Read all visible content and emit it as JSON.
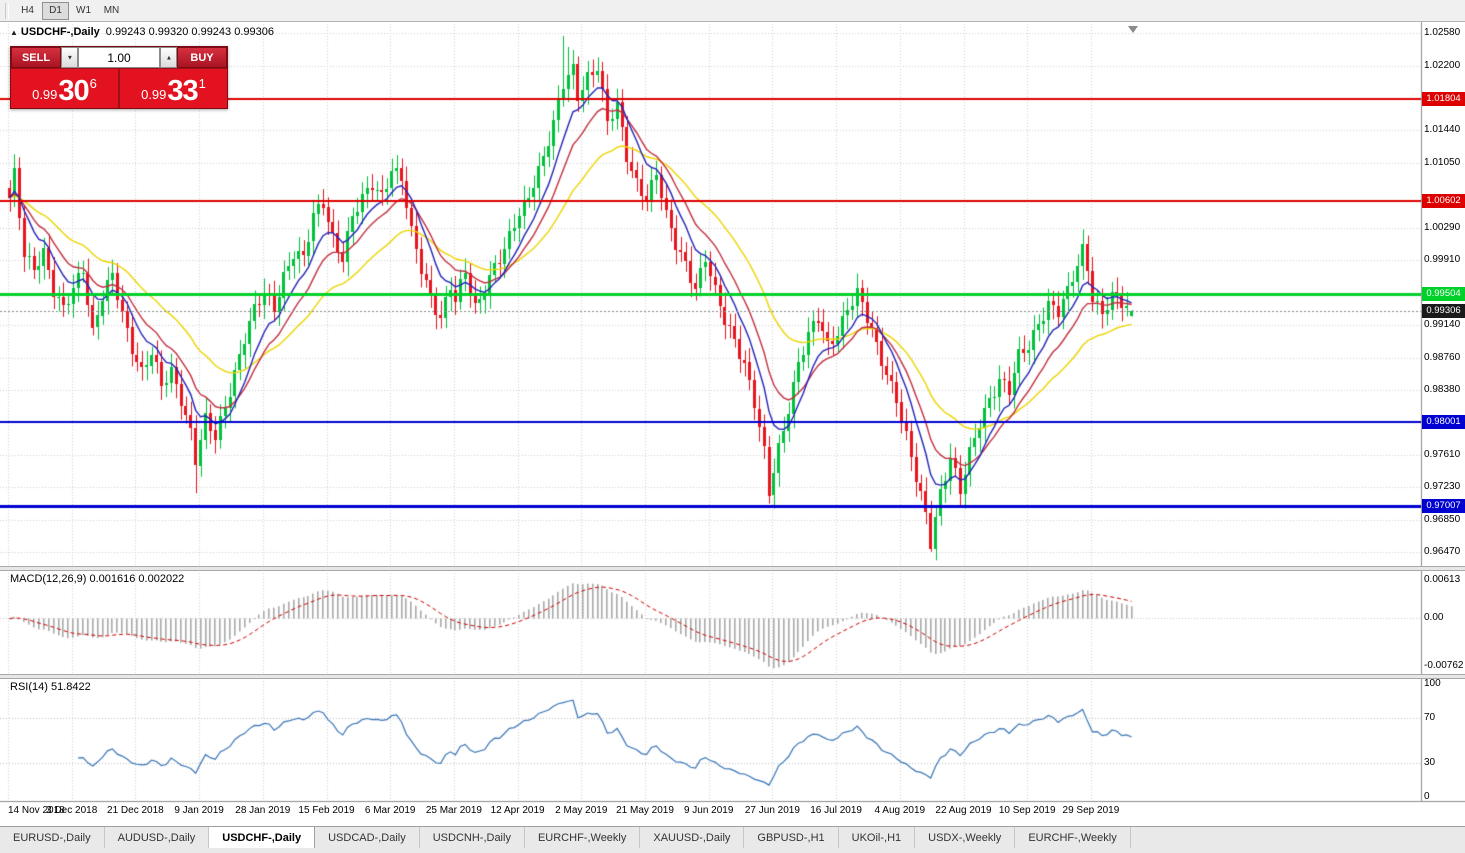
{
  "toolbar": {
    "buttons": [
      {
        "label": "H4",
        "active": false
      },
      {
        "label": "D1",
        "active": true
      },
      {
        "label": "W1",
        "active": false
      },
      {
        "label": "MN",
        "active": false
      }
    ]
  },
  "chart_header": {
    "collapse_icon": "▲",
    "symbol_title": "USDCHF-,Daily",
    "ohlc_text": "0.99243 0.99320 0.99243 0.99306"
  },
  "trade_panel": {
    "sell_label": "SELL",
    "buy_label": "BUY",
    "volume": "1.00",
    "dropdown_icon": "▼",
    "up_icon": "▲",
    "sell_price": {
      "prefix": "0.99",
      "pips": "30",
      "pipette": "6"
    },
    "buy_price": {
      "prefix": "0.99",
      "pips": "33",
      "pipette": "1"
    },
    "colors": {
      "panel": "#9d0f18",
      "button": "#c0151f",
      "price_bg": "#e31220"
    }
  },
  "chart_data": {
    "type": "candlestick",
    "symbol": "USDCHF-",
    "timeframe": "Daily",
    "ylim": [
      0.9635,
      1.0262
    ],
    "y_axis_values": [
      1.0258,
      1.022,
      1.0144,
      1.0105,
      1.0029,
      0.9991,
      0.9914,
      0.9876,
      0.9838,
      0.9761,
      0.9723,
      0.9685,
      0.9647
    ],
    "x_labels": [
      "14 Nov 2018",
      "3 Dec 2018",
      "21 Dec 2018",
      "9 Jan 2019",
      "28 Jan 2019",
      "15 Feb 2019",
      "6 Mar 2019",
      "25 Mar 2019",
      "12 Apr 2019",
      "2 May 2019",
      "21 May 2019",
      "9 Jun 2019",
      "27 Jun 2019",
      "16 Jul 2019",
      "4 Aug 2019",
      "22 Aug 2019",
      "10 Sep 2019",
      "29 Sep 2019"
    ],
    "candles_per_label": 13,
    "num_candles": 230,
    "up_color": "#00c13b",
    "down_color": "#e8141e",
    "grid_color": "#d2d2d2",
    "horizontal_lines": [
      {
        "price": 1.01804,
        "color": "#dd0000",
        "width": 2
      },
      {
        "price": 1.00602,
        "color": "#dd0000",
        "width": 2
      },
      {
        "price": 0.99504,
        "color": "#00d02a",
        "width": 3
      },
      {
        "price": 0.98001,
        "color": "#0000d0",
        "width": 2
      },
      {
        "price": 0.97007,
        "color": "#0000d0",
        "width": 3
      }
    ],
    "current_price": 0.99306,
    "current_price_tag_bg": "#1a1a1a",
    "ma_lines": [
      {
        "period": 8,
        "color": "#2323b8"
      },
      {
        "period": 14,
        "color": "#c23040"
      },
      {
        "period": 30,
        "color": "#ecd500"
      }
    ],
    "waypoints": [
      [
        0,
        1.006
      ],
      [
        1,
        1.009
      ],
      [
        3,
        1.0
      ],
      [
        5,
        0.9985
      ],
      [
        7,
        1.0
      ],
      [
        9,
        0.995
      ],
      [
        11,
        0.993
      ],
      [
        13,
        0.996
      ],
      [
        15,
        0.9985
      ],
      [
        17,
        0.9905
      ],
      [
        19,
        0.9945
      ],
      [
        21,
        0.997
      ],
      [
        23,
        0.993
      ],
      [
        25,
        0.989
      ],
      [
        27,
        0.986
      ],
      [
        29,
        0.988
      ],
      [
        31,
        0.984
      ],
      [
        33,
        0.986
      ],
      [
        35,
        0.983
      ],
      [
        37,
        0.979
      ],
      [
        38,
        0.9755
      ],
      [
        40,
        0.98
      ],
      [
        42,
        0.978
      ],
      [
        44,
        0.982
      ],
      [
        46,
        0.986
      ],
      [
        48,
        0.99
      ],
      [
        50,
        0.993
      ],
      [
        52,
        0.995
      ],
      [
        54,
        0.9935
      ],
      [
        56,
        0.9975
      ],
      [
        58,
        1.0
      ],
      [
        60,
        0.999
      ],
      [
        62,
        1.004
      ],
      [
        64,
        1.006
      ],
      [
        66,
        1.002
      ],
      [
        68,
        0.9995
      ],
      [
        70,
        1.004
      ],
      [
        72,
        1.006
      ],
      [
        74,
        1.008
      ],
      [
        76,
        1.007
      ],
      [
        78,
        1.01
      ],
      [
        80,
        1.0085
      ],
      [
        82,
        1.002
      ],
      [
        84,
        0.998
      ],
      [
        86,
        0.995
      ],
      [
        88,
        0.9925
      ],
      [
        90,
        0.996
      ],
      [
        91,
        0.994
      ],
      [
        93,
        0.9975
      ],
      [
        95,
        0.9935
      ],
      [
        97,
        0.996
      ],
      [
        99,
        0.9985
      ],
      [
        101,
        1.0
      ],
      [
        103,
        1.003
      ],
      [
        105,
        1.0055
      ],
      [
        107,
        1.0085
      ],
      [
        109,
        1.0115
      ],
      [
        111,
        1.015
      ],
      [
        113,
        1.0195
      ],
      [
        115,
        1.0215
      ],
      [
        116,
        1.0185
      ],
      [
        118,
        1.021
      ],
      [
        120,
        1.022
      ],
      [
        122,
        1.015
      ],
      [
        124,
        1.017
      ],
      [
        126,
        1.0115
      ],
      [
        128,
        1.0085
      ],
      [
        130,
        1.0065
      ],
      [
        132,
        1.009
      ],
      [
        134,
        1.004
      ],
      [
        136,
        1.001
      ],
      [
        138,
        0.999
      ],
      [
        140,
        0.996
      ],
      [
        142,
        0.999
      ],
      [
        144,
        0.995
      ],
      [
        146,
        0.992
      ],
      [
        148,
        0.99
      ],
      [
        150,
        0.987
      ],
      [
        152,
        0.982
      ],
      [
        154,
        0.976
      ],
      [
        155,
        0.9715
      ],
      [
        157,
        0.977
      ],
      [
        159,
        0.982
      ],
      [
        161,
        0.987
      ],
      [
        163,
        0.99
      ],
      [
        165,
        0.992
      ],
      [
        167,
        0.989
      ],
      [
        169,
        0.991
      ],
      [
        171,
        0.9935
      ],
      [
        173,
        0.995
      ],
      [
        175,
        0.992
      ],
      [
        177,
        0.989
      ],
      [
        179,
        0.986
      ],
      [
        181,
        0.983
      ],
      [
        183,
        0.978
      ],
      [
        185,
        0.973
      ],
      [
        187,
        0.969
      ],
      [
        188,
        0.966
      ],
      [
        190,
        0.972
      ],
      [
        192,
        0.976
      ],
      [
        194,
        0.9715
      ],
      [
        196,
        0.976
      ],
      [
        198,
        0.98
      ],
      [
        200,
        0.983
      ],
      [
        202,
        0.985
      ],
      [
        204,
        0.9835
      ],
      [
        206,
        0.9875
      ],
      [
        208,
        0.989
      ],
      [
        210,
        0.992
      ],
      [
        212,
        0.994
      ],
      [
        214,
        0.9928
      ],
      [
        216,
        0.995
      ],
      [
        218,
        0.9985
      ],
      [
        219,
        1.0005
      ],
      [
        220,
        0.9985
      ],
      [
        221,
        0.995
      ],
      [
        223,
        0.9928
      ],
      [
        225,
        0.9945
      ],
      [
        227,
        0.9938
      ],
      [
        229,
        0.99306
      ]
    ],
    "special_candles": {
      "17": {
        "low": 0.9902
      },
      "38": {
        "low": 0.9716
      },
      "113": {
        "high": 1.0255
      },
      "114": {
        "high": 1.0242
      },
      "188": {
        "low": 0.9647
      },
      "194": {
        "low": 0.9702
      },
      "219": {
        "high": 1.0027
      },
      "229": {
        "open": 0.99243,
        "high": 0.9932,
        "low": 0.99243,
        "close": 0.99306
      }
    },
    "macd": {
      "name": "MACD(12,26,9)",
      "values_text": "0.001616 0.002022",
      "fast": 12,
      "slow": 26,
      "signal": 9,
      "range": [
        -0.0082,
        0.0066
      ],
      "axis_labels": [
        {
          "text": "0.00613",
          "value": 0.00613
        },
        {
          "text": "0.00",
          "value": 0
        },
        {
          "text": "-0.00762",
          "value": -0.00762
        }
      ],
      "hist_color": "#a9a9a9",
      "signal_color": "#cc0000"
    },
    "rsi": {
      "name": "RSI(14)",
      "value_text": "51.8422",
      "period": 14,
      "range": [
        0,
        100
      ],
      "levels": [
        70,
        30
      ],
      "axis_labels": [
        {
          "text": "100",
          "value": 100
        },
        {
          "text": "70",
          "value": 70
        },
        {
          "text": "30",
          "value": 30
        },
        {
          "text": "0",
          "value": 0
        }
      ],
      "color": "#3a76b8"
    }
  },
  "tabs": {
    "items": [
      "EURUSD-,Daily",
      "AUDUSD-,Daily",
      "USDCHF-,Daily",
      "USDCAD-,Daily",
      "USDCNH-,Daily",
      "EURCHF-,Weekly",
      "XAUUSD-,Daily",
      "GBPUSD-,H1",
      "UKOil-,H1",
      "USDX-,Weekly",
      "EURCHF-,Weekly"
    ],
    "active_index": 2
  }
}
